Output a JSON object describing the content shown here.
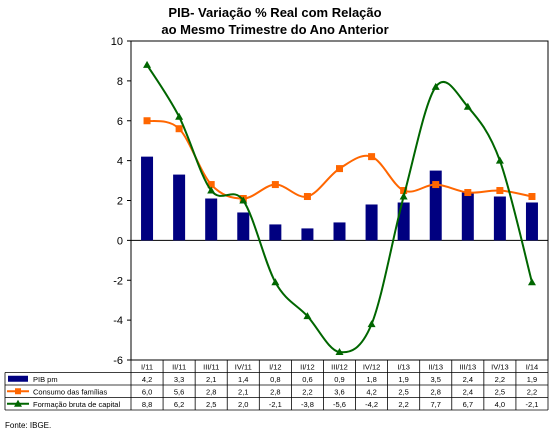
{
  "chart_data": {
    "type": "bar+line",
    "title": [
      "PIB- Variação % Real com Relação",
      "ao Mesmo Trimestre do Ano Anterior"
    ],
    "categories": [
      "I/11",
      "II/11",
      "III/11",
      "IV/11",
      "I/12",
      "II/12",
      "III/12",
      "IV/12",
      "I/13",
      "II/13",
      "III/13",
      "IV/13",
      "I/14"
    ],
    "ylim": [
      -6,
      10
    ],
    "yticks": [
      "10",
      "8",
      "6",
      "4",
      "2",
      "0",
      "-2",
      "-4",
      "-6"
    ],
    "grid": false,
    "legend": "data-table-below",
    "series": [
      {
        "name": "PIB pm",
        "kind": "bar",
        "color": "#000080",
        "values": [
          4.2,
          3.3,
          2.1,
          1.4,
          0.8,
          0.6,
          0.9,
          1.8,
          1.9,
          3.5,
          2.4,
          2.2,
          1.9
        ],
        "labels": [
          "4,2",
          "3,3",
          "2,1",
          "1,4",
          "0,8",
          "0,6",
          "0,9",
          "1,8",
          "1,9",
          "3,5",
          "2,4",
          "2,2",
          "1,9"
        ]
      },
      {
        "name": "Consumo das famílias",
        "kind": "line",
        "marker": "square",
        "color": "#FF6600",
        "values": [
          6.0,
          5.6,
          2.8,
          2.1,
          2.8,
          2.2,
          3.6,
          4.2,
          2.5,
          2.8,
          2.4,
          2.5,
          2.2
        ],
        "labels": [
          "6,0",
          "5,6",
          "2,8",
          "2,1",
          "2,8",
          "2,2",
          "3,6",
          "4,2",
          "2,5",
          "2,8",
          "2,4",
          "2,5",
          "2,2"
        ]
      },
      {
        "name": "Formação bruta de capital",
        "kind": "line",
        "marker": "triangle",
        "color": "#006600",
        "values": [
          8.8,
          6.2,
          2.5,
          2.0,
          -2.1,
          -3.8,
          -5.6,
          -4.2,
          2.2,
          7.7,
          6.7,
          4.0,
          -2.1
        ],
        "labels": [
          "8,8",
          "6,2",
          "2,5",
          "2,0",
          "-2,1",
          "-3,8",
          "-5,6",
          "-4,2",
          "2,2",
          "7,7",
          "6,7",
          "4,0",
          "-2,1"
        ]
      }
    ]
  },
  "footer": {
    "source": "Fonte: IBGE."
  }
}
